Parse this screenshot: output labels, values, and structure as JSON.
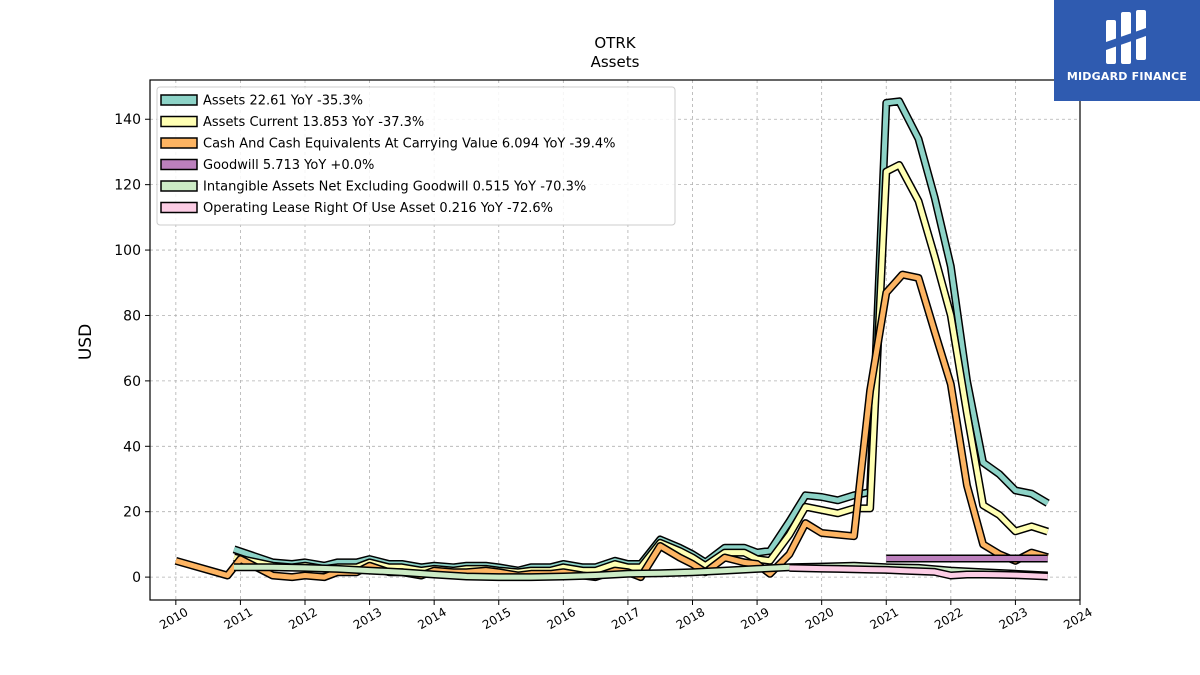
{
  "brand": {
    "name": "MIDGARD FINANCE",
    "color": "#2f5bb0"
  },
  "chart_data": {
    "type": "line",
    "title": "OTRK",
    "subtitle": "Assets",
    "ylabel": "USD",
    "xlim": [
      2009.6,
      2024.0
    ],
    "ylim": [
      -7,
      152
    ],
    "yticks": [
      0,
      20,
      40,
      60,
      80,
      100,
      120,
      140
    ],
    "xticks": [
      2010,
      2011,
      2012,
      2013,
      2014,
      2015,
      2016,
      2017,
      2018,
      2019,
      2020,
      2021,
      2022,
      2023,
      2024
    ],
    "grid": true,
    "legend_position": "top-left",
    "series": [
      {
        "name": "Assets",
        "legend": "Assets  22.61 YoY -35.3%",
        "color": "#8dd3c7",
        "x": [
          2010.9,
          2011.5,
          2011.8,
          2012.0,
          2012.3,
          2012.5,
          2012.8,
          2013.0,
          2013.3,
          2013.5,
          2013.8,
          2014.0,
          2014.3,
          2014.5,
          2014.8,
          2015.0,
          2015.3,
          2015.5,
          2015.8,
          2016.0,
          2016.3,
          2016.5,
          2016.8,
          2017.0,
          2017.2,
          2017.5,
          2017.8,
          2018.0,
          2018.2,
          2018.5,
          2018.8,
          2019.0,
          2019.2,
          2019.5,
          2019.75,
          2020.0,
          2020.25,
          2020.5,
          2020.75,
          2021.0,
          2021.2,
          2021.5,
          2021.75,
          2022.0,
          2022.25,
          2022.5,
          2022.75,
          2023.0,
          2023.25,
          2023.5
        ],
        "y": [
          8.5,
          4.5,
          4.0,
          4.5,
          3.5,
          4.5,
          4.5,
          5.5,
          4.0,
          4.0,
          3.0,
          3.5,
          3.0,
          3.5,
          3.5,
          3.0,
          2.0,
          3.0,
          3.0,
          4.0,
          3.0,
          3.0,
          5.0,
          4.0,
          4.0,
          11.5,
          9.0,
          7.0,
          4.5,
          9.0,
          9.0,
          7.5,
          8.0,
          17.0,
          25.0,
          24.5,
          23.5,
          25.0,
          26.0,
          145.0,
          145.5,
          134.0,
          116.0,
          95.0,
          60.0,
          35.0,
          31.5,
          26.5,
          25.5,
          22.6
        ]
      },
      {
        "name": "Assets Current",
        "legend": "Assets Current  13.853 YoY -37.3%",
        "color": "#ffffb3",
        "x": [
          2010.9,
          2011.5,
          2011.8,
          2012.0,
          2012.3,
          2012.5,
          2012.8,
          2013.0,
          2013.3,
          2013.5,
          2013.8,
          2014.0,
          2014.3,
          2014.5,
          2014.8,
          2015.0,
          2015.3,
          2015.5,
          2015.8,
          2016.0,
          2016.3,
          2016.5,
          2016.8,
          2017.0,
          2017.2,
          2017.5,
          2017.8,
          2018.0,
          2018.2,
          2018.5,
          2018.8,
          2019.0,
          2019.2,
          2019.5,
          2019.75,
          2020.0,
          2020.25,
          2020.5,
          2020.75,
          2021.0,
          2021.2,
          2021.5,
          2021.75,
          2022.0,
          2022.25,
          2022.5,
          2022.75,
          2023.0,
          2023.25,
          2023.5
        ],
        "y": [
          6.0,
          3.5,
          3.0,
          3.5,
          2.5,
          3.0,
          3.0,
          4.5,
          3.0,
          3.0,
          2.0,
          2.5,
          2.0,
          2.5,
          2.5,
          2.0,
          1.5,
          2.0,
          2.0,
          3.0,
          2.0,
          2.0,
          4.0,
          3.0,
          3.0,
          10.5,
          8.0,
          6.0,
          3.5,
          7.5,
          7.5,
          5.5,
          5.0,
          13.0,
          21.5,
          20.5,
          19.5,
          21.0,
          21.0,
          124.0,
          126.0,
          115.0,
          98.0,
          80.0,
          50.0,
          22.0,
          19.0,
          14.0,
          15.5,
          13.9
        ]
      },
      {
        "name": "Cash And Cash Equivalents At Carrying Value",
        "legend": "Cash And Cash Equivalents At Carrying Value  6.094 YoY -39.4%",
        "color": "#fdb462",
        "x": [
          2010.0,
          2010.8,
          2011.0,
          2011.5,
          2011.8,
          2012.0,
          2012.3,
          2012.5,
          2012.8,
          2013.0,
          2013.3,
          2013.5,
          2013.8,
          2014.0,
          2014.3,
          2014.5,
          2014.8,
          2015.0,
          2015.3,
          2015.5,
          2015.8,
          2016.0,
          2016.3,
          2016.5,
          2016.8,
          2017.0,
          2017.2,
          2017.5,
          2017.8,
          2018.0,
          2018.2,
          2018.5,
          2018.8,
          2019.0,
          2019.2,
          2019.5,
          2019.75,
          2020.0,
          2020.25,
          2020.5,
          2020.75,
          2021.0,
          2021.25,
          2021.5,
          2021.75,
          2022.0,
          2022.25,
          2022.5,
          2022.75,
          2023.0,
          2023.25,
          2023.5
        ],
        "y": [
          5.0,
          0.5,
          5.5,
          0.5,
          0.0,
          0.5,
          0.0,
          1.5,
          1.5,
          3.5,
          1.5,
          1.5,
          0.5,
          2.0,
          1.5,
          1.5,
          2.0,
          1.5,
          0.5,
          1.0,
          1.0,
          1.5,
          0.5,
          0.0,
          2.0,
          1.5,
          0.0,
          9.5,
          6.0,
          4.0,
          1.5,
          6.0,
          4.5,
          4.0,
          1.0,
          7.0,
          16.5,
          13.5,
          13.0,
          12.5,
          57.0,
          87.0,
          92.5,
          91.5,
          75.0,
          59.0,
          28.0,
          10.0,
          7.0,
          5.0,
          7.5,
          6.1
        ]
      },
      {
        "name": "Goodwill",
        "legend": "Goodwill  5.713 YoY +0.0%",
        "color": "#bc80bd",
        "x": [
          2021.0,
          2021.5,
          2022.0,
          2022.5,
          2023.0,
          2023.5
        ],
        "y": [
          5.7,
          5.7,
          5.7,
          5.7,
          5.7,
          5.7
        ]
      },
      {
        "name": "Intangible Assets Net Excluding Goodwill",
        "legend": "Intangible Assets Net Excluding Goodwill  0.515 YoY -70.3%",
        "color": "#ccebc5",
        "x": [
          2010.9,
          2011.5,
          2012.0,
          2012.5,
          2013.0,
          2013.5,
          2014.0,
          2014.5,
          2015.0,
          2015.5,
          2016.0,
          2016.5,
          2017.0,
          2017.5,
          2018.0,
          2018.5,
          2019.0,
          2019.5,
          2020.0,
          2020.5,
          2021.0,
          2021.5,
          2022.0,
          2022.5,
          2023.0,
          2023.5
        ],
        "y": [
          3.0,
          3.0,
          2.8,
          2.5,
          2.0,
          1.5,
          0.8,
          0.2,
          0.0,
          0.0,
          0.2,
          0.5,
          1.0,
          1.2,
          1.5,
          2.0,
          2.5,
          3.0,
          3.2,
          3.5,
          3.0,
          2.8,
          2.0,
          1.5,
          1.0,
          0.5
        ]
      },
      {
        "name": "Operating Lease Right Of Use Asset",
        "legend": "Operating Lease Right Of Use Asset  0.216 YoY -72.6%",
        "color": "#fccde5",
        "x": [
          2019.5,
          2019.75,
          2020.0,
          2020.25,
          2020.5,
          2020.75,
          2021.0,
          2021.25,
          2021.5,
          2021.75,
          2022.0,
          2022.25,
          2022.5,
          2022.75,
          2023.0,
          2023.25,
          2023.5
        ],
        "y": [
          2.8,
          2.7,
          2.6,
          2.5,
          2.4,
          2.3,
          2.2,
          2.0,
          1.8,
          1.6,
          0.5,
          0.8,
          0.8,
          0.7,
          0.6,
          0.4,
          0.2
        ]
      }
    ]
  }
}
